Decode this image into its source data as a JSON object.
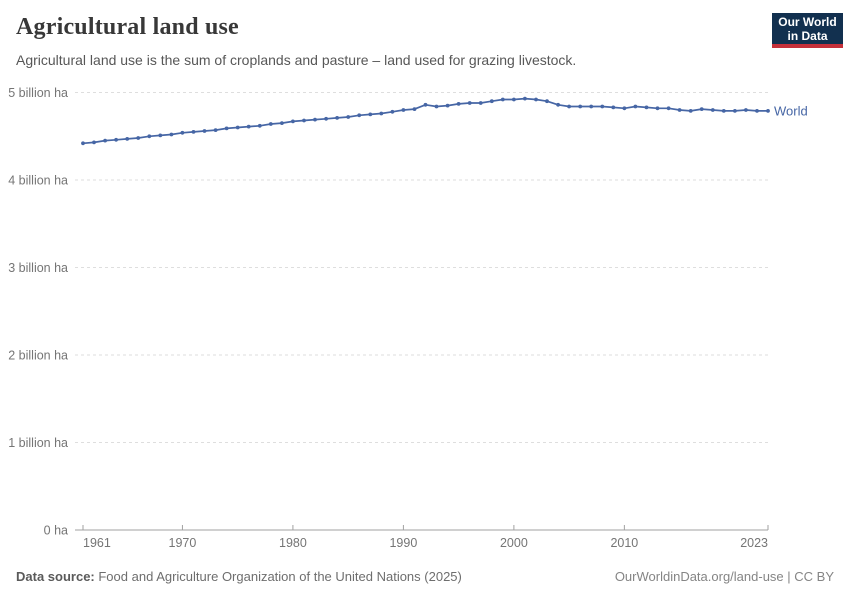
{
  "header": {
    "title": "Agricultural land use",
    "subtitle": "Agricultural land use is the sum of croplands and pasture – land used for grazing livestock.",
    "logo": {
      "line1": "Our World",
      "line2": "in Data"
    }
  },
  "footer": {
    "source_label": "Data source:",
    "source_text": " Food and Agriculture Organization of the United Nations (2025)",
    "link_text": "OurWorldinData.org/land-use",
    "separator": " | ",
    "license": "CC BY"
  },
  "colors": {
    "line": "#4666a5",
    "entity_label": "#4666a5",
    "gridline": "#dedede",
    "axis": "#a1a1a1",
    "tick_label": "#757575",
    "logo_bg": "#12304f",
    "logo_accent": "#c5303a"
  },
  "chart_data": {
    "type": "line",
    "title": "Agricultural land use",
    "xlabel": "",
    "ylabel": "",
    "unit": "billion ha",
    "xlim": [
      1961,
      2023
    ],
    "ylim": [
      0,
      5
    ],
    "grid": "horizontal-dashed",
    "legend_position": "end-of-line",
    "x": [
      1961,
      1962,
      1963,
      1964,
      1965,
      1966,
      1967,
      1968,
      1969,
      1970,
      1971,
      1972,
      1973,
      1974,
      1975,
      1976,
      1977,
      1978,
      1979,
      1980,
      1981,
      1982,
      1983,
      1984,
      1985,
      1986,
      1987,
      1988,
      1989,
      1990,
      1991,
      1992,
      1993,
      1994,
      1995,
      1996,
      1997,
      1998,
      1999,
      2000,
      2001,
      2002,
      2003,
      2004,
      2005,
      2006,
      2007,
      2008,
      2009,
      2010,
      2011,
      2012,
      2013,
      2014,
      2015,
      2016,
      2017,
      2018,
      2019,
      2020,
      2021,
      2022,
      2023
    ],
    "series": [
      {
        "name": "World",
        "values": [
          4.42,
          4.43,
          4.45,
          4.46,
          4.47,
          4.48,
          4.5,
          4.51,
          4.52,
          4.54,
          4.55,
          4.56,
          4.57,
          4.59,
          4.6,
          4.61,
          4.62,
          4.64,
          4.65,
          4.67,
          4.68,
          4.69,
          4.7,
          4.71,
          4.72,
          4.74,
          4.75,
          4.76,
          4.78,
          4.8,
          4.81,
          4.86,
          4.84,
          4.85,
          4.87,
          4.88,
          4.88,
          4.9,
          4.92,
          4.92,
          4.93,
          4.92,
          4.9,
          4.86,
          4.84,
          4.84,
          4.84,
          4.84,
          4.83,
          4.82,
          4.84,
          4.83,
          4.82,
          4.82,
          4.8,
          4.79,
          4.81,
          4.8,
          4.79,
          4.79,
          4.8,
          4.79,
          4.79
        ]
      }
    ],
    "yticks": [
      {
        "value": 0,
        "label": "0 ha"
      },
      {
        "value": 1,
        "label": "1 billion ha"
      },
      {
        "value": 2,
        "label": "2 billion ha"
      },
      {
        "value": 3,
        "label": "3 billion ha"
      },
      {
        "value": 4,
        "label": "4 billion ha"
      },
      {
        "value": 5,
        "label": "5 billion ha"
      }
    ],
    "xticks": [
      1961,
      1970,
      1980,
      1990,
      2000,
      2010,
      2023
    ]
  }
}
